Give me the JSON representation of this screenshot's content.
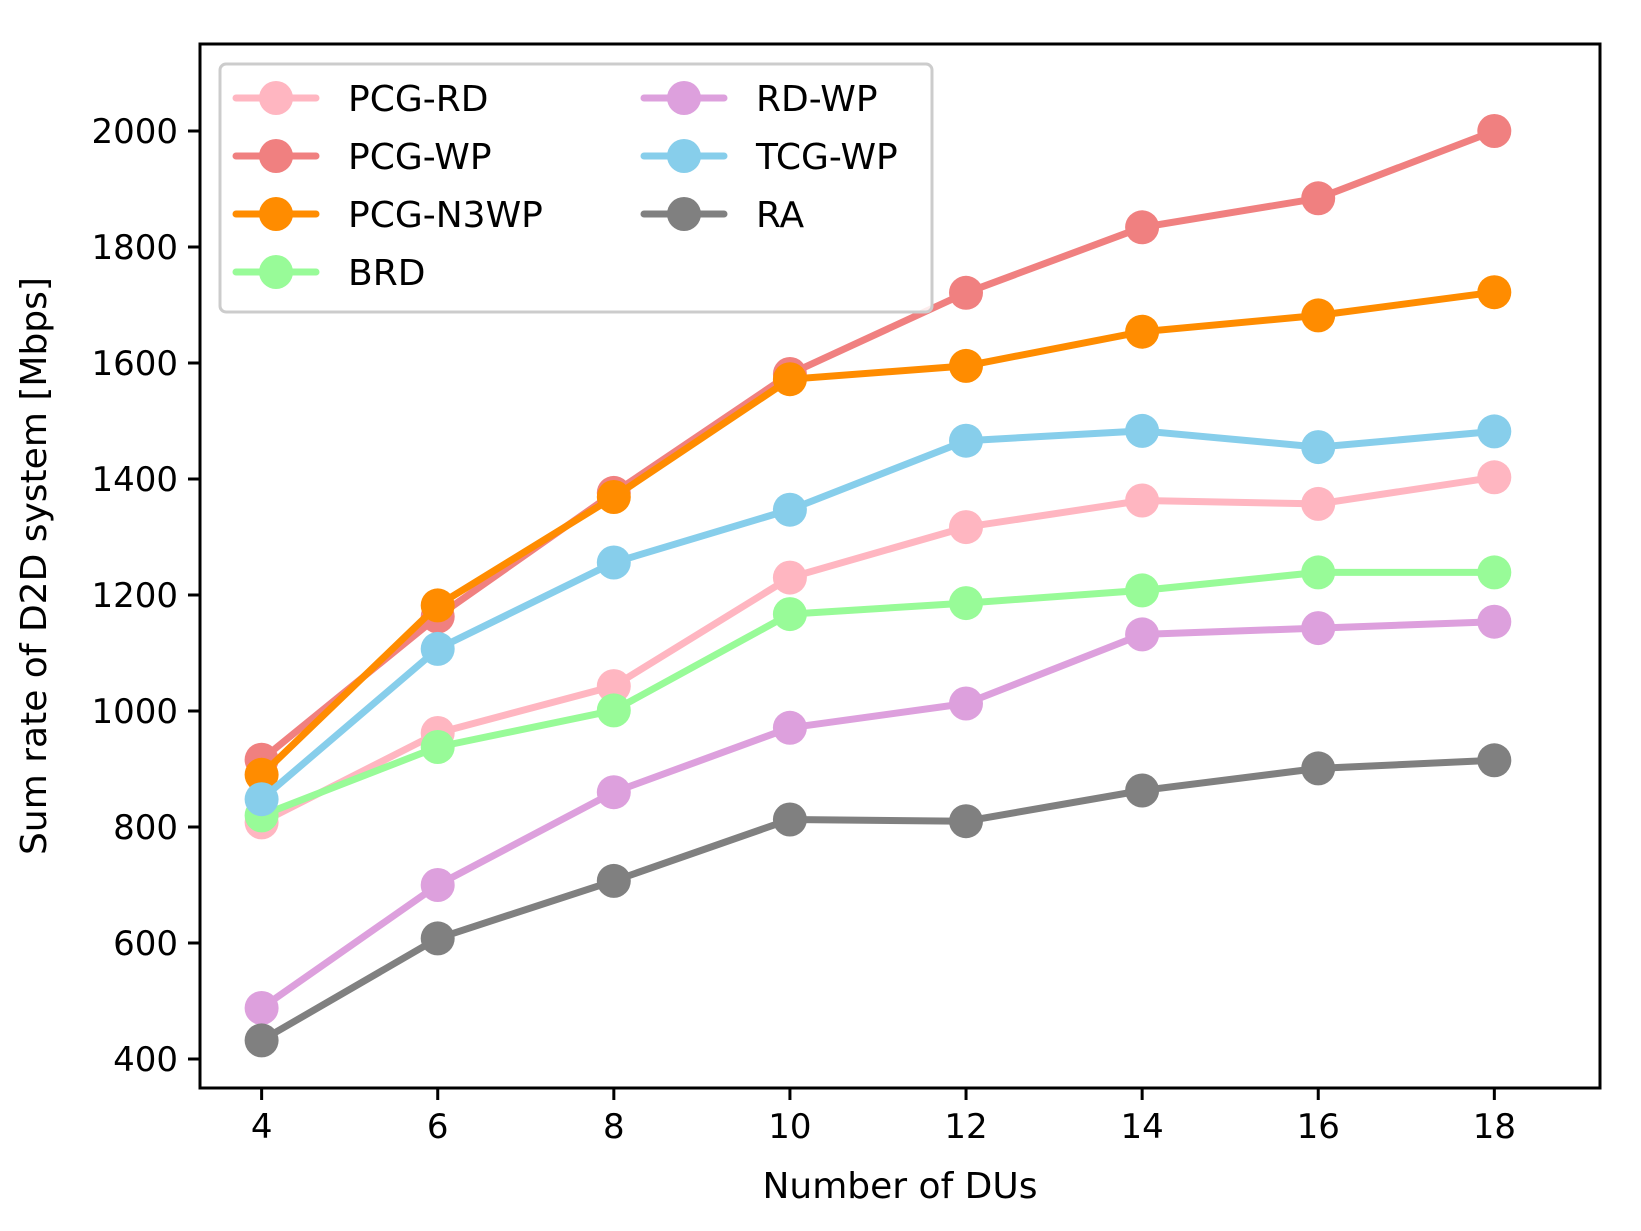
{
  "chart_data": {
    "type": "line",
    "title": "",
    "xlabel": "Number of DUs",
    "ylabel": "Sum rate of D2D system [Mbps]",
    "x": [
      4,
      6,
      8,
      10,
      12,
      14,
      16,
      18
    ],
    "xlim": [
      3.3,
      19.2
    ],
    "ylim": [
      350,
      2150
    ],
    "xticks": [
      4,
      6,
      8,
      10,
      12,
      14,
      16,
      18
    ],
    "yticks": [
      400,
      600,
      800,
      1000,
      1200,
      1400,
      1600,
      1800,
      2000
    ],
    "grid": false,
    "legend_position": "top-left",
    "series": [
      {
        "name": "PCG-RD",
        "color": "#ffb6c1",
        "values": [
          808,
          962,
          1043,
          1230,
          1317,
          1363,
          1357,
          1403
        ]
      },
      {
        "name": "PCG-WP",
        "color": "#f08080",
        "values": [
          916,
          1163,
          1376,
          1581,
          1721,
          1834,
          1884,
          2000
        ]
      },
      {
        "name": "PCG-N3WP",
        "color": "#ff8c00",
        "values": [
          890,
          1182,
          1369,
          1572,
          1595,
          1654,
          1682,
          1722
        ]
      },
      {
        "name": "BRD",
        "color": "#98fb98",
        "values": [
          820,
          938,
          1001,
          1167,
          1186,
          1208,
          1239,
          1239
        ]
      },
      {
        "name": "RD-WP",
        "color": "#dda0dd",
        "values": [
          488,
          700,
          860,
          971,
          1013,
          1132,
          1143,
          1154
        ]
      },
      {
        "name": "TCG-WP",
        "color": "#87ceeb",
        "values": [
          848,
          1107,
          1256,
          1347,
          1466,
          1483,
          1455,
          1482
        ]
      },
      {
        "name": "RA",
        "color": "#808080",
        "values": [
          432,
          608,
          707,
          813,
          810,
          863,
          901,
          915
        ]
      }
    ]
  }
}
